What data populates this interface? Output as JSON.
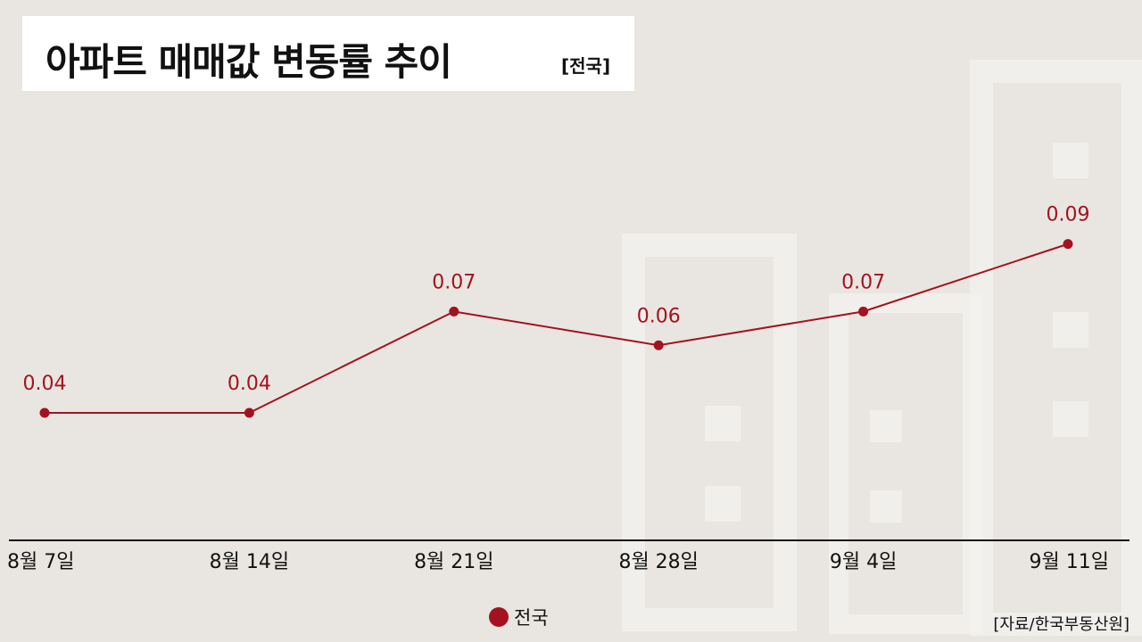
{
  "title": {
    "main": "아파트 매매값 변동률 추이",
    "sub": "[전국]"
  },
  "source": "[자료/한국부동산원]",
  "colors": {
    "series": "#a4121f",
    "axis": "#111111",
    "background": "#e9e6e1"
  },
  "chart_data": {
    "type": "line",
    "categories": [
      "8월 7일",
      "8월 14일",
      "8월 21일",
      "8월 28일",
      "9월 4일",
      "9월 11일"
    ],
    "series": [
      {
        "name": "전국",
        "values": [
          0.04,
          0.04,
          0.07,
          0.06,
          0.07,
          0.09
        ]
      }
    ],
    "data_labels": [
      "0.04",
      "0.04",
      "0.07",
      "0.06",
      "0.07",
      "0.09"
    ],
    "ylim": [
      -0.04,
      0.12
    ],
    "grid": false,
    "legend": "bottom-center"
  }
}
